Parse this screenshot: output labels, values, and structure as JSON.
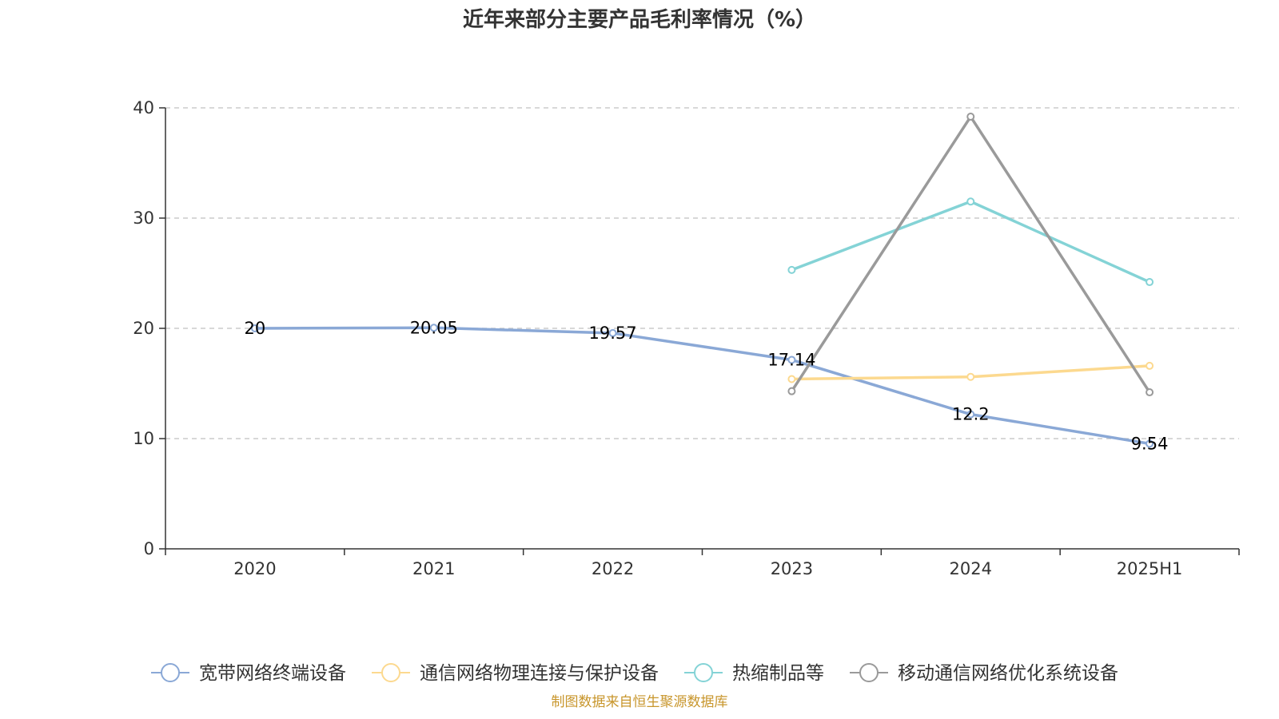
{
  "title": "近年来部分主要产品毛利率情况（%）",
  "source_note": "制图数据来自恒生聚源数据库",
  "chart_data": {
    "type": "line",
    "categories": [
      "2020",
      "2021",
      "2022",
      "2023",
      "2024",
      "2025H1"
    ],
    "ylim": [
      0,
      40
    ],
    "yticks": [
      0,
      10,
      20,
      30,
      40
    ],
    "grid": true,
    "legend_position": "bottom",
    "series": [
      {
        "name": "宽带网络终端设备",
        "color": "#8aa8d6",
        "values": [
          20,
          20.05,
          19.57,
          17.14,
          12.2,
          9.54
        ],
        "labels": [
          "20",
          "20.05",
          "19.57",
          "17.14",
          "12.2",
          "9.54"
        ]
      },
      {
        "name": "通信网络物理连接与保护设备",
        "color": "#fcd98f",
        "values": [
          null,
          null,
          null,
          15.4,
          15.6,
          16.6
        ]
      },
      {
        "name": "热缩制品等",
        "color": "#84d3d6",
        "values": [
          null,
          null,
          null,
          25.3,
          31.5,
          24.2
        ]
      },
      {
        "name": "移动通信网络优化系统设备",
        "color": "#9a9a9a",
        "values": [
          null,
          null,
          null,
          14.3,
          39.2,
          14.2
        ]
      }
    ]
  }
}
